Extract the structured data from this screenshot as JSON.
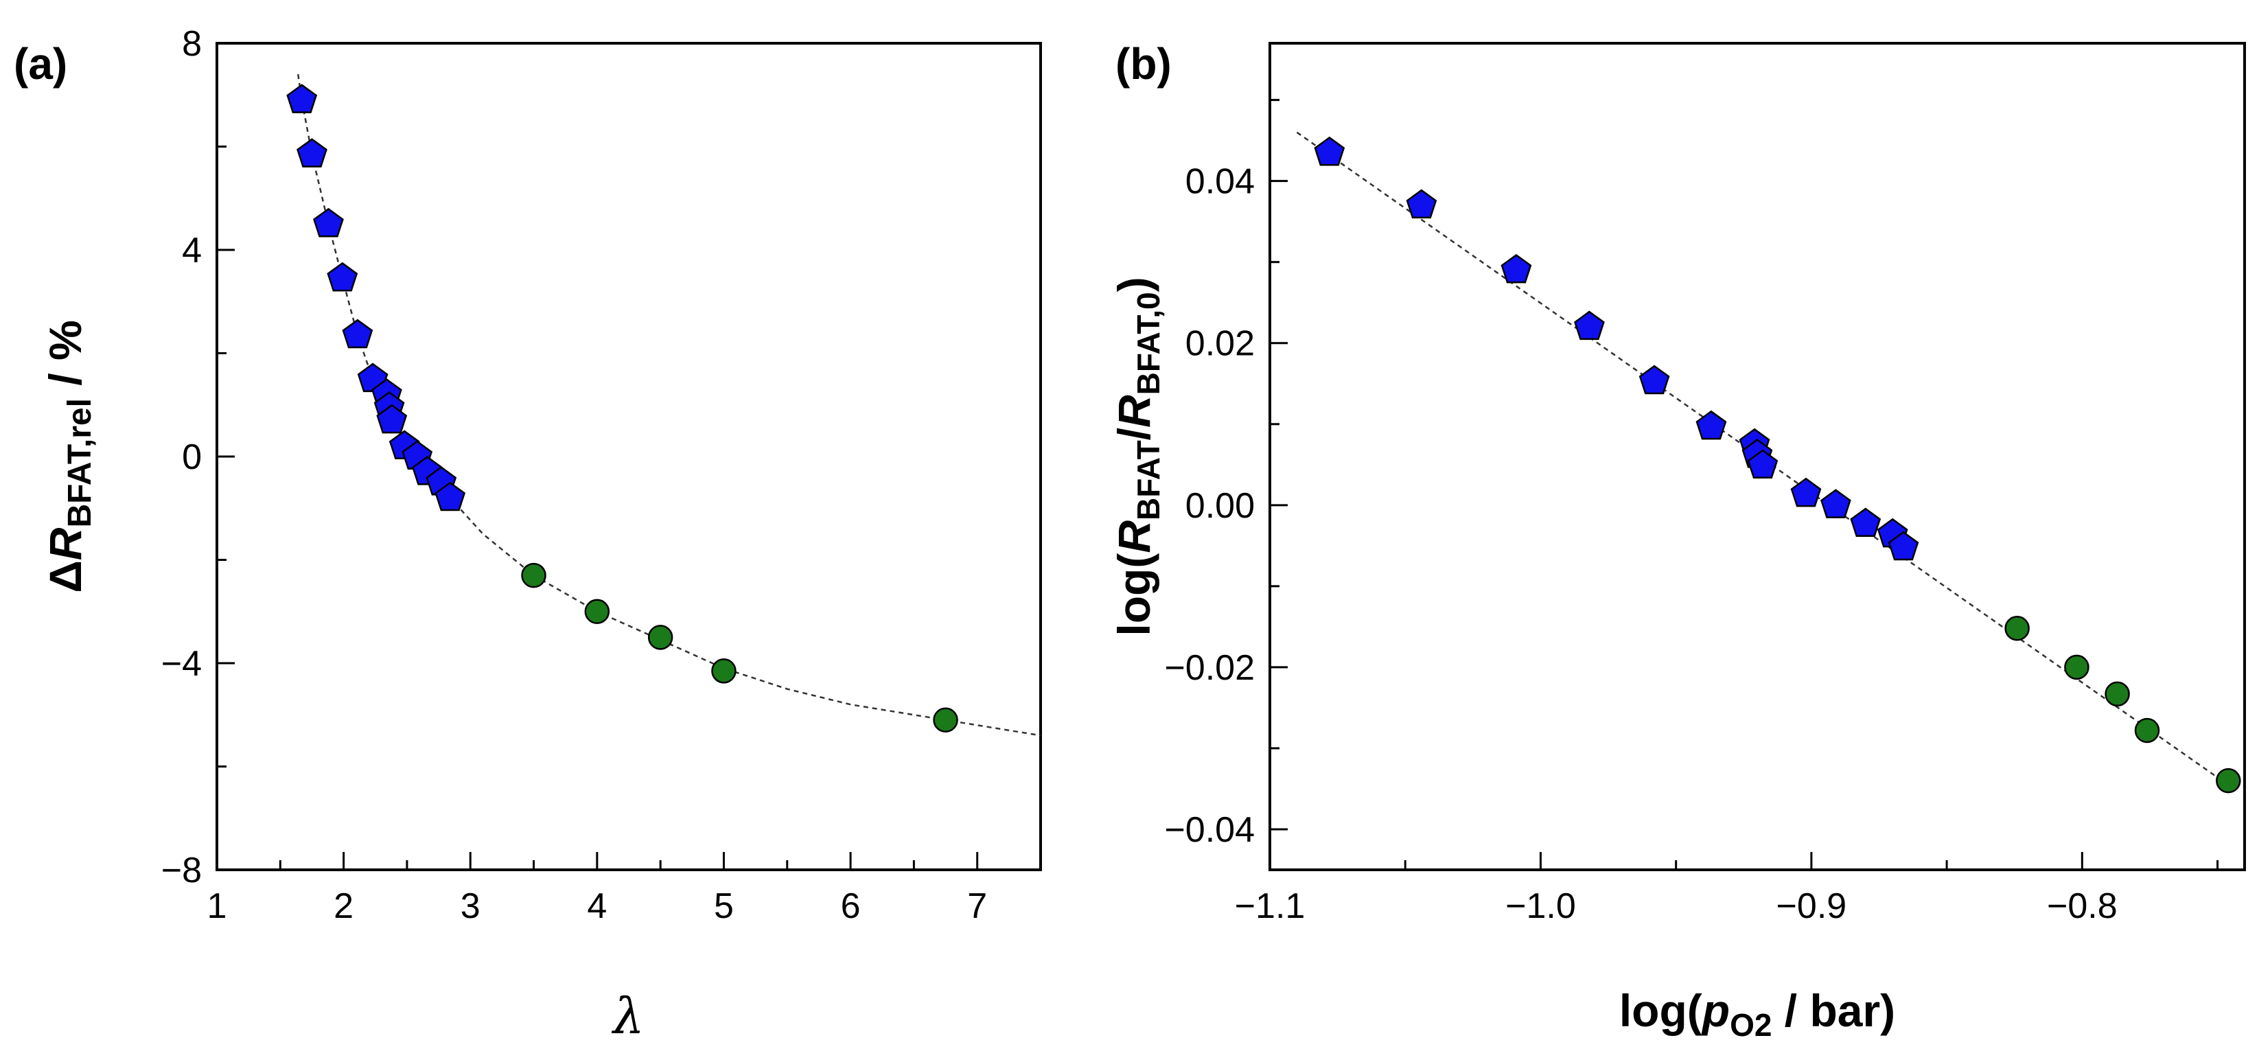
{
  "chart_data": [
    {
      "id": "a",
      "type": "scatter",
      "panel_label": "(a)",
      "xlabel": "λ",
      "ylabel": {
        "prefix": "Δ",
        "var": "R",
        "sub": "BFAT,rel",
        "suffix": " / %"
      },
      "xlim": [
        1,
        7.5
      ],
      "ylim": [
        -8,
        8
      ],
      "xticks": [
        1,
        2,
        3,
        4,
        5,
        6,
        7
      ],
      "xtick_labels": [
        "1",
        "2",
        "3",
        "4",
        "5",
        "6",
        "7"
      ],
      "yticks": [
        -8,
        -4,
        0,
        4,
        8
      ],
      "ytick_labels": [
        "−8",
        "−4",
        "0",
        "4",
        "8"
      ],
      "series": [
        {
          "name": "pentagon series",
          "marker": "pentagon",
          "color": "#1010ee",
          "x": [
            1.67,
            1.75,
            1.88,
            1.99,
            2.11,
            2.23,
            2.34,
            2.36,
            2.38,
            2.48,
            2.58,
            2.66,
            2.77,
            2.84
          ],
          "y": [
            6.9,
            5.85,
            4.5,
            3.45,
            2.35,
            1.5,
            1.2,
            0.95,
            0.7,
            0.2,
            0.0,
            -0.3,
            -0.5,
            -0.8
          ]
        },
        {
          "name": "circle series",
          "marker": "circle",
          "color": "#1a7a1a",
          "x": [
            3.5,
            4.0,
            4.5,
            5.0,
            6.75
          ],
          "y": [
            -2.3,
            -3.0,
            -3.5,
            -4.15,
            -5.1
          ]
        },
        {
          "name": "fit",
          "marker": "none",
          "line": "dashed",
          "x": [
            1.64,
            1.67,
            1.75,
            1.88,
            1.99,
            2.11,
            2.23,
            2.35,
            2.5,
            2.66,
            2.84,
            3.1,
            3.5,
            4.0,
            4.5,
            5.0,
            5.5,
            6.0,
            6.75,
            7.5
          ],
          "y": [
            7.4,
            6.9,
            5.85,
            4.5,
            3.45,
            2.35,
            1.5,
            0.9,
            0.2,
            -0.3,
            -0.8,
            -1.5,
            -2.3,
            -3.0,
            -3.55,
            -4.1,
            -4.5,
            -4.8,
            -5.1,
            -5.4
          ]
        }
      ]
    },
    {
      "id": "b",
      "type": "scatter",
      "panel_label": "(b)",
      "xlabel": {
        "prefix": "log(",
        "var": "p",
        "sub": "O2",
        "suffix": " / bar)"
      },
      "ylabel": {
        "prefix": "log(",
        "var1": "R",
        "sub1": "BFAT",
        "mid": "/",
        "var2": "R",
        "sub2": "BFAT,0",
        "suffix": ")"
      },
      "xlim": [
        -1.1,
        -0.74
      ],
      "ylim": [
        -0.045,
        0.057
      ],
      "xticks": [
        -1.1,
        -1.0,
        -0.9,
        -0.8
      ],
      "xtick_labels": [
        "−1.1",
        "−1.0",
        "−0.9",
        "−0.8"
      ],
      "yticks": [
        -0.04,
        -0.02,
        0.0,
        0.02,
        0.04
      ],
      "ytick_labels": [
        "−0.04",
        "−0.02",
        "0.00",
        "0.02",
        "0.04"
      ],
      "series": [
        {
          "name": "pentagon series",
          "marker": "pentagon",
          "color": "#1010ee",
          "x": [
            -1.078,
            -1.044,
            -1.009,
            -0.982,
            -0.958,
            -0.937,
            -0.921,
            -0.92,
            -0.918,
            -0.902,
            -0.891,
            -0.88,
            -0.87,
            -0.866
          ],
          "y": [
            0.0435,
            0.037,
            0.029,
            0.022,
            0.0153,
            0.0097,
            0.0075,
            0.0062,
            0.0049,
            0.0014,
            0.0,
            -0.0023,
            -0.0036,
            -0.0052
          ]
        },
        {
          "name": "circle series",
          "marker": "circle",
          "color": "#1a7a1a",
          "x": [
            -0.824,
            -0.802,
            -0.787,
            -0.776,
            -0.746
          ],
          "y": [
            -0.0152,
            -0.02,
            -0.0233,
            -0.0278,
            -0.034
          ]
        },
        {
          "name": "fit",
          "marker": "none",
          "line": "dashed",
          "x": [
            -1.09,
            -0.744
          ],
          "y": [
            0.046,
            -0.035
          ]
        }
      ]
    }
  ]
}
